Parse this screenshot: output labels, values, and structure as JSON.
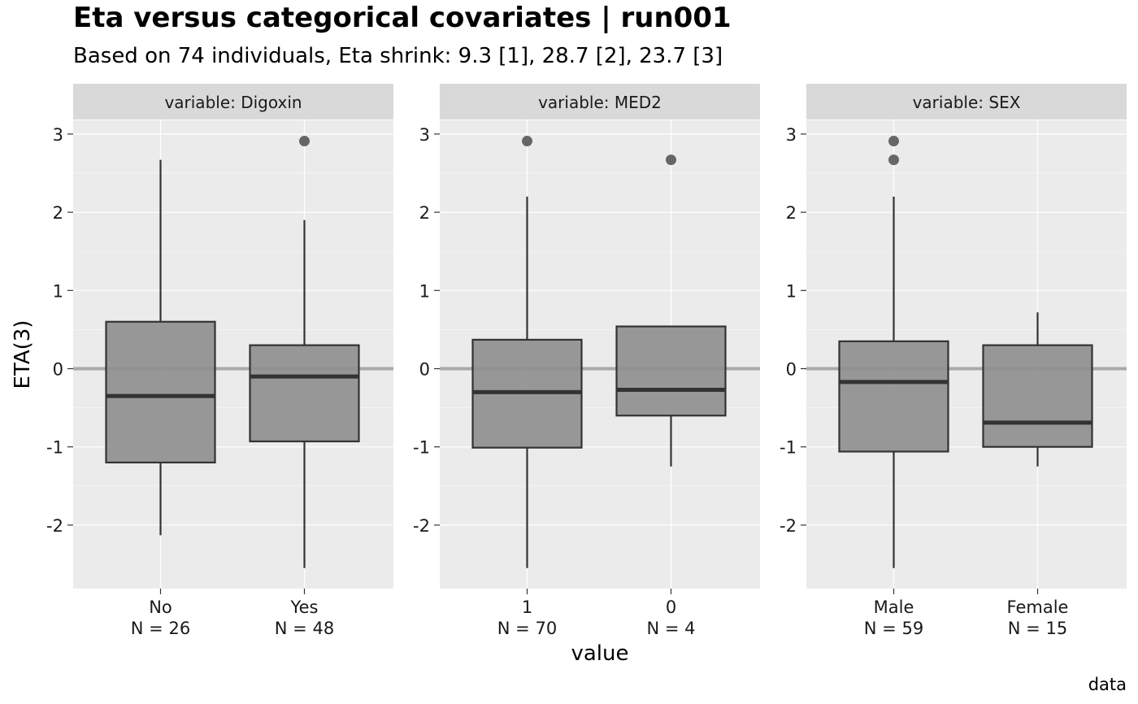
{
  "title": "Eta versus categorical covariates | run001",
  "subtitle": "Based on 74 individuals, Eta shrink: 9.3 [1], 28.7 [2], 23.7 [3]",
  "caption": "data",
  "chart_data": {
    "type": "boxplot",
    "ylabel": "ETA(3)",
    "xlabel": "value",
    "ylim": [
      -2.8,
      3.2
    ],
    "yticks": [
      -2,
      -1,
      0,
      1,
      2,
      3
    ],
    "reference_line": 0,
    "grid": true,
    "panels": [
      {
        "strip": "variable: Digoxin",
        "groups": [
          {
            "category": "No",
            "n_label": "N = 26",
            "min": -2.13,
            "q1": -1.2,
            "median": -0.35,
            "q3": 0.6,
            "max": 2.67,
            "outliers": []
          },
          {
            "category": "Yes",
            "n_label": "N = 48",
            "min": -2.55,
            "q1": -0.93,
            "median": -0.1,
            "q3": 0.3,
            "max": 1.9,
            "outliers": [
              2.91
            ]
          }
        ]
      },
      {
        "strip": "variable: MED2",
        "groups": [
          {
            "category": "1",
            "n_label": "N = 70",
            "min": -2.55,
            "q1": -1.01,
            "median": -0.3,
            "q3": 0.37,
            "max": 2.2,
            "outliers": [
              2.91
            ]
          },
          {
            "category": "0",
            "n_label": "N = 4",
            "min": -1.25,
            "q1": -0.6,
            "median": -0.27,
            "q3": 0.54,
            "max": 0.54,
            "outliers": [
              2.67
            ]
          }
        ]
      },
      {
        "strip": "variable: SEX",
        "groups": [
          {
            "category": "Male",
            "n_label": "N = 59",
            "min": -2.55,
            "q1": -1.06,
            "median": -0.17,
            "q3": 0.35,
            "max": 2.2,
            "outliers": [
              2.91,
              2.67
            ]
          },
          {
            "category": "Female",
            "n_label": "N = 15",
            "min": -1.25,
            "q1": -1.0,
            "median": -0.69,
            "q3": 0.3,
            "max": 0.72,
            "outliers": []
          }
        ]
      }
    ]
  }
}
